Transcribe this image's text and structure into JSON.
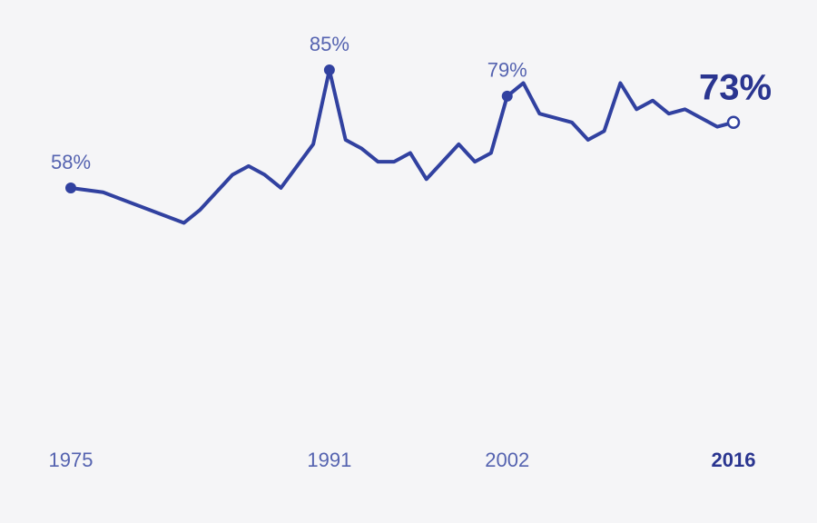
{
  "chart_data": {
    "type": "line",
    "x": [
      1975,
      1977,
      1982,
      1983,
      1984,
      1985,
      1986,
      1987,
      1988,
      1990,
      1991,
      1992,
      1993,
      1994,
      1995,
      1996,
      1997,
      1998,
      1999,
      2000,
      2001,
      2002,
      2003,
      2004,
      2006,
      2007,
      2008,
      2009,
      2010,
      2011,
      2012,
      2013,
      2015,
      2016
    ],
    "values": [
      58,
      57,
      50,
      53,
      57,
      61,
      63,
      61,
      58,
      68,
      85,
      69,
      67,
      64,
      64,
      66,
      60,
      64,
      68,
      64,
      66,
      79,
      82,
      75,
      73,
      69,
      71,
      82,
      76,
      78,
      75,
      76,
      72,
      73
    ],
    "value_labels": [
      "58%",
      null,
      null,
      null,
      null,
      null,
      null,
      null,
      null,
      null,
      "85%",
      null,
      null,
      null,
      null,
      null,
      null,
      null,
      null,
      null,
      null,
      "79%",
      null,
      null,
      null,
      null,
      null,
      null,
      null,
      null,
      null,
      null,
      null,
      "73%"
    ],
    "color": "#3141a0",
    "xlim": [
      1975,
      2016
    ],
    "xticks": [
      1975,
      1991,
      2002,
      2016
    ],
    "ylim": [
      0,
      90
    ]
  }
}
